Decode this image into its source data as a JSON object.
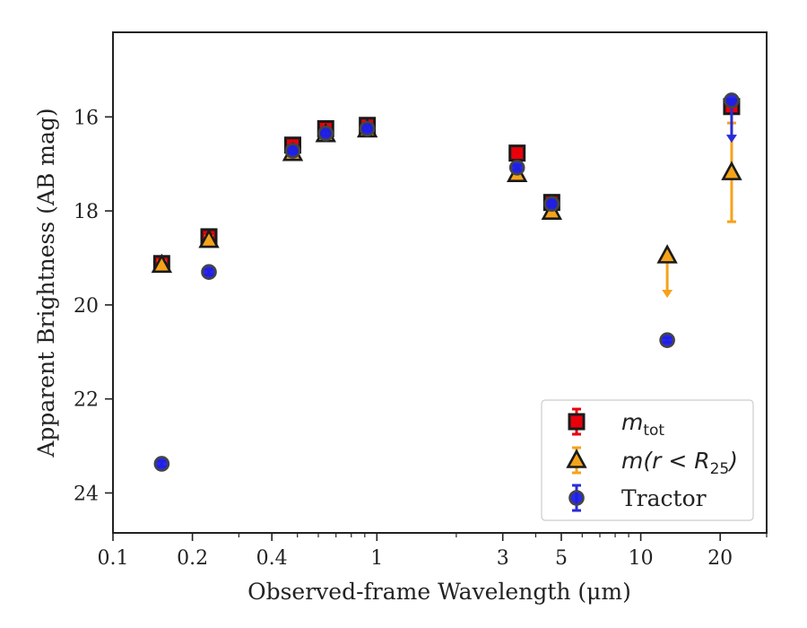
{
  "chart_data": {
    "type": "scatter",
    "title": "",
    "xlabel": "Observed-frame Wavelength (μm)",
    "ylabel": "Apparent Brightness (AB mag)",
    "x_scale": "log",
    "xlim": [
      0.1,
      30
    ],
    "ylim": [
      24.85,
      14.2
    ],
    "y_inverted": true,
    "grid": false,
    "legend_position": "lower-right",
    "xticks": [
      {
        "value": 0.1,
        "label": "0.1"
      },
      {
        "value": 0.2,
        "label": "0.2"
      },
      {
        "value": 0.4,
        "label": "0.4"
      },
      {
        "value": 1,
        "label": "1"
      },
      {
        "value": 3,
        "label": "3"
      },
      {
        "value": 5,
        "label": "5"
      },
      {
        "value": 10,
        "label": "10"
      },
      {
        "value": 20,
        "label": "20"
      }
    ],
    "yticks": [
      {
        "value": 16,
        "label": "16"
      },
      {
        "value": 18,
        "label": "18"
      },
      {
        "value": 20,
        "label": "20"
      },
      {
        "value": 22,
        "label": "22"
      },
      {
        "value": 24,
        "label": "24"
      }
    ],
    "series": [
      {
        "key": "mtot",
        "name": "m",
        "name_sub": "tot",
        "marker": "square",
        "color": "#e8000b",
        "errcolor": "#e8000b",
        "points": [
          {
            "x": 0.153,
            "y": 19.12,
            "err": 0.08
          },
          {
            "x": 0.231,
            "y": 18.55,
            "err": 0.08
          },
          {
            "x": 0.48,
            "y": 16.6,
            "err": 0.06
          },
          {
            "x": 0.64,
            "y": 16.25,
            "err": 0.06
          },
          {
            "x": 0.92,
            "y": 16.18,
            "err": 0.06
          },
          {
            "x": 3.4,
            "y": 16.77,
            "err": 0.05
          },
          {
            "x": 4.6,
            "y": 17.82,
            "err": 0.05
          },
          {
            "x": 22.1,
            "y": 15.78,
            "err": 0.05
          }
        ]
      },
      {
        "key": "mr25",
        "name": "m(r < R",
        "name_sub": "25",
        "name_end": ")",
        "marker": "triangle",
        "color": "#f5a31a",
        "errcolor": "#f5a31a",
        "points": [
          {
            "x": 0.153,
            "y": 19.15,
            "err": 0.08
          },
          {
            "x": 0.231,
            "y": 18.62,
            "err": 0.08
          },
          {
            "x": 0.48,
            "y": 16.77,
            "err": 0.06
          },
          {
            "x": 0.64,
            "y": 16.37,
            "err": 0.06
          },
          {
            "x": 0.92,
            "y": 16.27,
            "err": 0.06
          },
          {
            "x": 3.4,
            "y": 17.22,
            "err": 0.06
          },
          {
            "x": 4.6,
            "y": 18.02,
            "err": 0.06
          },
          {
            "x": 12.6,
            "y": 18.95,
            "upper_limit": true,
            "arrow_to": 19.85
          },
          {
            "x": 22.1,
            "y": 17.18,
            "err": 1.05
          }
        ]
      },
      {
        "key": "tractor",
        "name": "Tractor",
        "marker": "circle",
        "color": "#1f1fe6",
        "errcolor": "#2b2bd9",
        "points": [
          {
            "x": 0.153,
            "y": 23.38,
            "err": 0.06
          },
          {
            "x": 0.231,
            "y": 19.3,
            "err": 0.06
          },
          {
            "x": 0.48,
            "y": 16.72,
            "err": 0.05
          },
          {
            "x": 0.64,
            "y": 16.35,
            "err": 0.05
          },
          {
            "x": 0.92,
            "y": 16.25,
            "err": 0.05
          },
          {
            "x": 3.4,
            "y": 17.08,
            "err": 0.05
          },
          {
            "x": 4.6,
            "y": 17.85,
            "err": 0.05
          },
          {
            "x": 12.6,
            "y": 20.75,
            "err": 0.05
          },
          {
            "x": 22.1,
            "y": 15.65,
            "upper_limit": true,
            "arrow_to": 16.55
          }
        ]
      }
    ]
  }
}
